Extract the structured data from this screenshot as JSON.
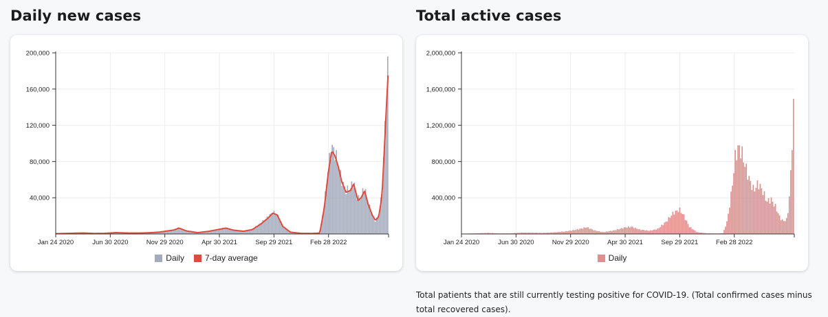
{
  "sections": {
    "daily_title": "Daily new cases",
    "active_title": "Total active cases",
    "active_note": "Total patients that are still currently testing positive for COVID-19. (Total confirmed cases minus total recovered cases)."
  },
  "colors": {
    "daily_bar": "#a3abbd",
    "average_line": "#e04a3c",
    "active_bar": "#e08e8e"
  },
  "chart_data": [
    {
      "type": "bar",
      "legend": [
        "Daily",
        "7-day average"
      ],
      "legend_position": "bottom",
      "grid": true,
      "ylim": [
        0,
        200000
      ],
      "yticks": [
        "200,000",
        "160,000",
        "120,000",
        "80,000",
        "40,000"
      ],
      "ytick_values": [
        200000,
        160000,
        120000,
        80000,
        40000
      ],
      "xticks": [
        "Jan 24 2020",
        "Jun 30 2020",
        "Nov 29 2020",
        "Apr 30 2021",
        "Sep 29 2021",
        "Feb 28 2022"
      ],
      "xtick_months": [
        0,
        5,
        10,
        15,
        20,
        25
      ],
      "xlim_months": [
        0,
        30.5
      ],
      "series": [
        {
          "name": "Daily",
          "x_months": [
            0,
            1.5,
            2.5,
            3.5,
            4.5,
            5.5,
            6.5,
            7.5,
            8.5,
            9.5,
            10.2,
            10.8,
            11.3,
            12,
            13,
            14,
            15,
            15.6,
            16.3,
            17.2,
            18,
            18.8,
            19.4,
            19.9,
            20.3,
            20.8,
            21.5,
            22.5,
            23.5,
            24.2,
            24.6,
            25,
            25.3,
            25.6,
            25.9,
            26.2,
            26.6,
            27,
            27.3,
            27.7,
            28,
            28.3,
            28.6,
            29,
            29.3,
            29.6,
            29.9,
            30.1,
            30.3,
            30.5
          ],
          "values": [
            300,
            800,
            1200,
            600,
            700,
            1600,
            1200,
            1000,
            1400,
            2200,
            3500,
            4500,
            7000,
            3500,
            1500,
            3000,
            5500,
            7000,
            4500,
            3000,
            5000,
            12000,
            18000,
            24000,
            22000,
            9000,
            2000,
            700,
            600,
            1000,
            30000,
            75000,
            96000,
            90000,
            78000,
            60000,
            48000,
            50000,
            58000,
            38000,
            42000,
            52000,
            36000,
            22000,
            15000,
            20000,
            45000,
            95000,
            150000,
            196000
          ]
        },
        {
          "name": "7-day average",
          "x_months": [
            0,
            1.5,
            2.5,
            3.5,
            4.5,
            5.5,
            6.5,
            7.5,
            8.5,
            9.5,
            10.2,
            10.8,
            11.3,
            12,
            13,
            14,
            15,
            15.6,
            16.3,
            17.2,
            18,
            18.8,
            19.4,
            19.9,
            20.3,
            20.8,
            21.5,
            22.5,
            23.5,
            24.2,
            24.6,
            25,
            25.3,
            25.6,
            25.9,
            26.2,
            26.6,
            27,
            27.3,
            27.7,
            28,
            28.3,
            28.6,
            29,
            29.3,
            29.6,
            29.9,
            30.1,
            30.3,
            30.45
          ],
          "values": [
            300,
            800,
            1100,
            600,
            700,
            1500,
            1100,
            1000,
            1300,
            2100,
            3300,
            4300,
            6500,
            3300,
            1500,
            2900,
            5200,
            6500,
            4200,
            3000,
            4800,
            11000,
            17000,
            23000,
            21000,
            8500,
            2000,
            700,
            600,
            1000,
            28000,
            70000,
            92000,
            86000,
            74000,
            58000,
            46000,
            48000,
            55000,
            37000,
            40000,
            48000,
            34000,
            21000,
            15000,
            19000,
            42000,
            90000,
            140000,
            175000
          ]
        }
      ]
    },
    {
      "type": "bar",
      "legend": [
        "Daily"
      ],
      "legend_position": "bottom",
      "grid": true,
      "ylim": [
        0,
        2000000
      ],
      "yticks": [
        "2,000,000",
        "1,600,000",
        "1,200,000",
        "800,000",
        "400,000"
      ],
      "ytick_values": [
        2000000,
        1600000,
        1200000,
        800000,
        400000
      ],
      "xticks": [
        "Jan 24 2020",
        "Jun 30 2020",
        "Nov 29 2020",
        "Apr 30 2021",
        "Sep 29 2021",
        "Feb 28 2022"
      ],
      "xtick_months": [
        0,
        5,
        10,
        15,
        20,
        25
      ],
      "xlim_months": [
        0,
        30.5
      ],
      "series": [
        {
          "name": "Daily",
          "x_months": [
            0,
            1.5,
            2.5,
            3.5,
            4.5,
            5.5,
            6.5,
            7.5,
            8.5,
            9.5,
            10.3,
            11,
            11.5,
            12.2,
            13,
            14,
            15,
            15.6,
            16.3,
            17.2,
            18,
            18.8,
            19.4,
            20,
            20.4,
            20.9,
            21.6,
            22.5,
            23.5,
            24,
            24.4,
            24.8,
            25.1,
            25.4,
            25.7,
            26,
            26.4,
            26.8,
            27.2,
            27.6,
            28,
            28.4,
            28.8,
            29.2,
            29.5,
            29.8,
            30,
            30.2,
            30.4,
            30.5
          ],
          "values": [
            3000,
            8000,
            12000,
            6000,
            7000,
            15000,
            14000,
            12000,
            18000,
            28000,
            42000,
            60000,
            75000,
            40000,
            20000,
            40000,
            72000,
            80000,
            50000,
            35000,
            55000,
            140000,
            230000,
            270000,
            200000,
            80000,
            20000,
            8000,
            6000,
            10000,
            160000,
            500000,
            850000,
            960000,
            900000,
            760000,
            600000,
            480000,
            560000,
            480000,
            360000,
            380000,
            300000,
            180000,
            140000,
            160000,
            300000,
            700000,
            1300000,
            1520000
          ]
        }
      ]
    }
  ]
}
